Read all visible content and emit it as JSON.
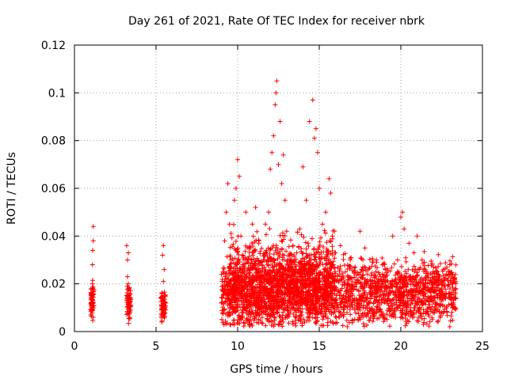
{
  "chart_data": {
    "type": "scatter",
    "title": "Day 261 of 2021, Rate Of TEC Index for receiver nbrk",
    "xlabel": "GPS time / hours",
    "ylabel": "ROTI / TECUs",
    "xlim": [
      0,
      25
    ],
    "ylim": [
      0,
      0.12
    ],
    "x_ticks": [
      0,
      5,
      10,
      15,
      20,
      25
    ],
    "y_ticks": [
      0,
      0.02,
      0.04,
      0.06,
      0.08,
      0.1,
      0.12
    ],
    "x_tick_labels": [
      "0",
      "5",
      "10",
      "15",
      "20",
      "25"
    ],
    "y_tick_labels": [
      "0",
      "0.02",
      "0.04",
      "0.06",
      "0.08",
      "0.1",
      "0.12"
    ],
    "grid": true,
    "marker": "+",
    "colors": {
      "series": "#ff0000",
      "grid": "#a0a0a0",
      "axis": "#000000"
    },
    "series": [
      {
        "points": [
          [
            1.0,
            0.007
          ],
          [
            1.05,
            0.012
          ],
          [
            1.08,
            0.015
          ],
          [
            1.1,
            0.02
          ],
          [
            1.12,
            0.034
          ],
          [
            1.15,
            0.038
          ],
          [
            1.15,
            0.044
          ],
          [
            1.1,
            0.028
          ],
          [
            1.05,
            0.01
          ],
          [
            1.15,
            0.006
          ],
          [
            3.2,
            0.036
          ],
          [
            3.25,
            0.03
          ],
          [
            3.3,
            0.02
          ],
          [
            3.2,
            0.015
          ],
          [
            3.3,
            0.012
          ],
          [
            3.35,
            0.01
          ],
          [
            3.4,
            0.008
          ],
          [
            3.25,
            0.023
          ],
          [
            3.3,
            0.033
          ],
          [
            3.35,
            0.018
          ],
          [
            5.3,
            0.006
          ],
          [
            5.35,
            0.009
          ],
          [
            5.4,
            0.013
          ],
          [
            5.45,
            0.021
          ],
          [
            5.5,
            0.026
          ],
          [
            5.4,
            0.032
          ],
          [
            5.45,
            0.036
          ],
          [
            5.5,
            0.011
          ],
          [
            5.35,
            0.004
          ],
          [
            5.55,
            0.015
          ],
          [
            9.0,
            0.012
          ],
          [
            9.1,
            0.025
          ],
          [
            9.2,
            0.038
          ],
          [
            9.3,
            0.05
          ],
          [
            9.4,
            0.062
          ],
          [
            9.5,
            0.045
          ],
          [
            9.6,
            0.03
          ],
          [
            9.7,
            0.018
          ],
          [
            9.8,
            0.055
          ],
          [
            9.9,
            0.06
          ],
          [
            10.0,
            0.072
          ],
          [
            10.1,
            0.065
          ],
          [
            10.2,
            0.04
          ],
          [
            10.3,
            0.028
          ],
          [
            10.5,
            0.05
          ],
          [
            10.7,
            0.035
          ],
          [
            10.9,
            0.045
          ],
          [
            11.1,
            0.052
          ],
          [
            11.3,
            0.038
          ],
          [
            11.5,
            0.025
          ],
          [
            11.7,
            0.045
          ],
          [
            11.9,
            0.05
          ],
          [
            12.0,
            0.068
          ],
          [
            12.1,
            0.075
          ],
          [
            12.2,
            0.082
          ],
          [
            12.3,
            0.095
          ],
          [
            12.35,
            0.1
          ],
          [
            12.4,
            0.105
          ],
          [
            12.5,
            0.07
          ],
          [
            12.6,
            0.088
          ],
          [
            12.7,
            0.062
          ],
          [
            12.8,
            0.074
          ],
          [
            12.9,
            0.055
          ],
          [
            13.0,
            0.042
          ],
          [
            13.2,
            0.03
          ],
          [
            13.5,
            0.025
          ],
          [
            13.8,
            0.043
          ],
          [
            14.0,
            0.069
          ],
          [
            14.2,
            0.055
          ],
          [
            14.4,
            0.088
          ],
          [
            14.6,
            0.097
          ],
          [
            14.7,
            0.081
          ],
          [
            14.8,
            0.085
          ],
          [
            14.9,
            0.075
          ],
          [
            15.0,
            0.06
          ],
          [
            15.2,
            0.045
          ],
          [
            15.4,
            0.05
          ],
          [
            15.6,
            0.064
          ],
          [
            15.7,
            0.058
          ],
          [
            15.8,
            0.04
          ],
          [
            16.0,
            0.033
          ],
          [
            16.3,
            0.036
          ],
          [
            16.6,
            0.025
          ],
          [
            16.9,
            0.03
          ],
          [
            17.2,
            0.027
          ],
          [
            17.5,
            0.042
          ],
          [
            17.8,
            0.035
          ],
          [
            18.0,
            0.026
          ],
          [
            18.5,
            0.03
          ],
          [
            19.0,
            0.028
          ],
          [
            19.5,
            0.04
          ],
          [
            19.8,
            0.03
          ],
          [
            20.0,
            0.048
          ],
          [
            20.1,
            0.05
          ],
          [
            20.2,
            0.043
          ],
          [
            20.5,
            0.037
          ],
          [
            20.8,
            0.033
          ],
          [
            21.0,
            0.04
          ],
          [
            21.3,
            0.03
          ],
          [
            21.6,
            0.025
          ],
          [
            22.0,
            0.027
          ],
          [
            22.3,
            0.024
          ],
          [
            22.6,
            0.026
          ],
          [
            23.0,
            0.028
          ],
          [
            23.3,
            0.022
          ],
          [
            9.5,
            0.008
          ],
          [
            10.5,
            0.015
          ],
          [
            11.5,
            0.01
          ],
          [
            12.5,
            0.018
          ],
          [
            13.5,
            0.012
          ],
          [
            14.5,
            0.02
          ],
          [
            15.5,
            0.01
          ],
          [
            16.5,
            0.015
          ],
          [
            17.5,
            0.009
          ],
          [
            18.5,
            0.013
          ],
          [
            19.5,
            0.007
          ],
          [
            20.5,
            0.011
          ],
          [
            21.5,
            0.016
          ],
          [
            22.5,
            0.008
          ],
          [
            23.2,
            0.012
          ]
        ],
        "dense_regions": [
          {
            "x": [
              9.0,
              23.4
            ],
            "y_center": 0.016,
            "y_spread": 0.012
          },
          {
            "x": [
              9.5,
              16.0
            ],
            "y_center": 0.022,
            "y_spread": 0.016
          },
          {
            "x": [
              1.0,
              1.2
            ],
            "y_center": 0.013,
            "y_spread": 0.007
          },
          {
            "x": [
              3.2,
              3.45
            ],
            "y_center": 0.012,
            "y_spread": 0.006
          },
          {
            "x": [
              5.3,
              5.6
            ],
            "y_center": 0.011,
            "y_spread": 0.006
          }
        ]
      }
    ]
  }
}
